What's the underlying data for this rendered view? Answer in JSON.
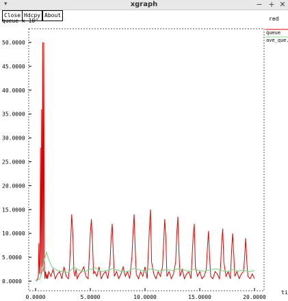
{
  "window": {
    "title": "xgraph",
    "menu_glyph": "▾",
    "minimize_glyph": "−",
    "maximize_glyph": "+",
    "close_glyph": "✕"
  },
  "toolbar": {
    "close_label": "Close",
    "hdcpy_label": "Hdcpy",
    "about_label": "About"
  },
  "chart_data": {
    "type": "line",
    "title": "red",
    "ylabel": "queue x 10^",
    "xlabel": "tim",
    "xlim": [
      0,
      20
    ],
    "ylim": [
      0,
      50
    ],
    "x_tick_labels": [
      "0.0000",
      "5.0000",
      "10.0000",
      "15.0000",
      "20.0000"
    ],
    "y_tick_labels": [
      "0.0000",
      "5.0000",
      "10.0000",
      "15.0000",
      "20.0000",
      "25.0000",
      "30.0000",
      "35.0000",
      "40.0000",
      "45.0000",
      "50.0000"
    ],
    "legend_placement": "top-right",
    "grid": false,
    "series": [
      {
        "name": "queue",
        "color": "#e00000",
        "x": [
          0.0,
          0.2,
          0.25,
          0.3,
          0.35,
          0.4,
          0.45,
          0.5,
          0.55,
          0.6,
          0.65,
          0.7,
          0.75,
          0.8,
          0.85,
          0.9,
          0.95,
          1.0,
          1.05,
          1.1,
          1.2,
          1.4,
          1.6,
          1.8,
          2.0,
          2.2,
          2.4,
          2.6,
          2.8,
          3.0,
          3.1,
          3.2,
          3.3,
          3.4,
          3.5,
          3.6,
          3.7,
          3.8,
          4.0,
          4.2,
          4.4,
          4.6,
          4.8,
          4.9,
          5.0,
          5.1,
          5.2,
          5.3,
          5.4,
          5.6,
          5.8,
          6.0,
          6.2,
          6.4,
          6.6,
          6.8,
          6.9,
          7.0,
          7.1,
          7.2,
          7.4,
          7.6,
          7.8,
          8.0,
          8.2,
          8.4,
          8.6,
          8.8,
          8.9,
          9.0,
          9.1,
          9.2,
          9.4,
          9.6,
          9.8,
          10.0,
          10.2,
          10.3,
          10.4,
          10.5,
          10.6,
          10.8,
          11.0,
          11.2,
          11.4,
          11.6,
          11.7,
          11.8,
          11.9,
          12.0,
          12.2,
          12.4,
          12.6,
          12.8,
          12.9,
          13.0,
          13.1,
          13.2,
          13.4,
          13.6,
          13.8,
          14.0,
          14.2,
          14.3,
          14.4,
          14.5,
          14.6,
          14.8,
          15.0,
          15.2,
          15.4,
          15.6,
          15.7,
          15.8,
          15.9,
          16.0,
          16.2,
          16.4,
          16.6,
          16.8,
          16.9,
          17.0,
          17.1,
          17.2,
          17.4,
          17.6,
          17.8,
          17.9,
          18.0,
          18.1,
          18.2,
          18.4,
          18.6,
          18.8,
          19.0,
          19.1,
          19.2,
          19.3,
          19.4,
          19.6,
          19.8,
          20.0
        ],
        "y": [
          0.0,
          0.5,
          1.0,
          8.0,
          1.5,
          4.0,
          28.0,
          1.0,
          36.0,
          3.0,
          50.0,
          2.0,
          50.0,
          5.0,
          0.5,
          2.0,
          1.0,
          0.5,
          1.5,
          0.5,
          2.0,
          1.0,
          2.5,
          0.5,
          1.5,
          2.0,
          0.5,
          3.0,
          1.0,
          0.5,
          3.0,
          8.0,
          14.0,
          10.0,
          2.0,
          1.0,
          2.5,
          0.5,
          1.5,
          2.0,
          3.0,
          1.0,
          0.5,
          5.0,
          10.0,
          13.0,
          8.0,
          1.5,
          2.0,
          1.0,
          3.0,
          0.5,
          1.5,
          2.0,
          0.5,
          4.0,
          9.0,
          12.0,
          6.0,
          1.0,
          2.0,
          0.5,
          1.5,
          3.0,
          1.0,
          2.0,
          0.5,
          5.0,
          10.0,
          14.0,
          7.0,
          1.5,
          0.5,
          2.0,
          1.0,
          3.0,
          0.5,
          6.0,
          11.0,
          15.0,
          4.0,
          1.5,
          0.5,
          2.0,
          1.0,
          3.0,
          8.0,
          13.0,
          9.0,
          1.0,
          2.0,
          0.5,
          1.5,
          4.0,
          10.0,
          13.5,
          6.0,
          1.0,
          2.5,
          0.5,
          1.5,
          2.0,
          0.5,
          5.0,
          9.5,
          12.0,
          3.0,
          1.0,
          2.0,
          0.5,
          1.0,
          2.5,
          7.0,
          10.5,
          5.0,
          1.0,
          0.5,
          2.0,
          1.5,
          0.5,
          3.0,
          8.0,
          11.0,
          4.0,
          1.0,
          2.0,
          0.5,
          6.0,
          10.0,
          6.0,
          1.0,
          2.0,
          0.5,
          1.5,
          2.0,
          5.0,
          9.0,
          4.0,
          1.0,
          0.5,
          1.5,
          0.5
        ]
      },
      {
        "name": "ave_que...",
        "color": "#7fd88a",
        "x": [
          0.0,
          0.4,
          0.6,
          0.8,
          1.0,
          1.2,
          1.5,
          2.0,
          2.5,
          3.0,
          3.5,
          4.0,
          4.5,
          5.0,
          5.5,
          6.0,
          6.5,
          7.0,
          7.5,
          8.0,
          8.5,
          9.0,
          9.5,
          10.0,
          10.5,
          11.0,
          11.5,
          12.0,
          12.5,
          13.0,
          13.5,
          14.0,
          14.5,
          15.0,
          15.5,
          16.0,
          16.5,
          17.0,
          17.5,
          18.0,
          18.5,
          19.0,
          19.5,
          20.0
        ],
        "y": [
          0.0,
          0.5,
          2.0,
          4.5,
          6.0,
          4.5,
          3.0,
          2.2,
          2.0,
          1.8,
          3.0,
          2.2,
          2.0,
          2.5,
          2.8,
          2.0,
          2.2,
          2.6,
          2.3,
          1.9,
          2.1,
          2.7,
          2.4,
          2.0,
          2.6,
          2.3,
          2.1,
          2.5,
          2.2,
          2.6,
          2.4,
          2.0,
          2.5,
          2.2,
          2.1,
          2.4,
          2.6,
          2.2,
          2.0,
          2.4,
          2.1,
          2.3,
          2.0,
          2.2
        ]
      }
    ]
  }
}
